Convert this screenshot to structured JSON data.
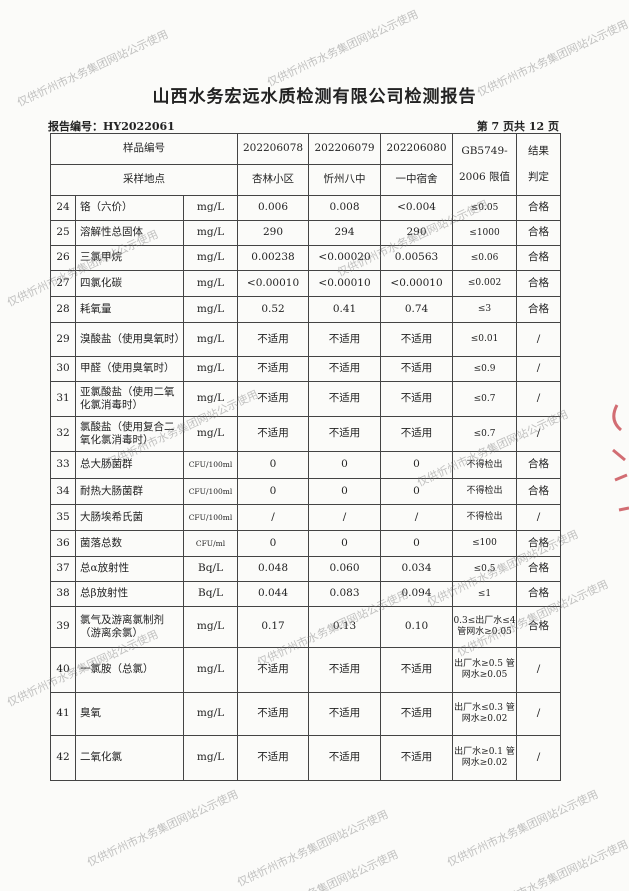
{
  "title": "山西水务宏远水质检测有限公司检测报告",
  "report_no": "报告编号：HY2022061",
  "page": "第 7 页共 12 页",
  "watermark": "仅供忻州市水务集团网站公示使用",
  "header": {
    "sample_no_label": "样品编号",
    "site_label": "采样地点",
    "samples": [
      "202206078",
      "202206079",
      "202206080"
    ],
    "sites": [
      "杏林小区",
      "忻州八中",
      "一中宿舍"
    ],
    "limit_label_1": "GB5749-",
    "limit_label_2": "2006 限值",
    "result_label_1": "结果",
    "result_label_2": "判定"
  },
  "rows": [
    {
      "no": "24",
      "name": "铬（六价）",
      "unit": "mg/L",
      "v": [
        "0.006",
        "0.008",
        "<0.004"
      ],
      "limit": "≤0.05",
      "result": "合格"
    },
    {
      "no": "25",
      "name": "溶解性总固体",
      "unit": "mg/L",
      "v": [
        "290",
        "294",
        "290"
      ],
      "limit": "≤1000",
      "result": "合格"
    },
    {
      "no": "26",
      "name": "三氯甲烷",
      "unit": "mg/L",
      "v": [
        "0.00238",
        "<0.00020",
        "0.00563"
      ],
      "limit": "≤0.06",
      "result": "合格"
    },
    {
      "no": "27",
      "name": "四氯化碳",
      "unit": "mg/L",
      "v": [
        "<0.00010",
        "<0.00010",
        "<0.00010"
      ],
      "limit": "≤0.002",
      "result": "合格"
    },
    {
      "no": "28",
      "name": "耗氧量",
      "unit": "mg/L",
      "v": [
        "0.52",
        "0.41",
        "0.74"
      ],
      "limit": "≤3",
      "result": "合格"
    },
    {
      "no": "29",
      "name": "溴酸盐（使用臭氧时）",
      "unit": "mg/L",
      "v": [
        "不适用",
        "不适用",
        "不适用"
      ],
      "limit": "≤0.01",
      "result": "/"
    },
    {
      "no": "30",
      "name": "甲醛（使用臭氧时）",
      "unit": "mg/L",
      "v": [
        "不适用",
        "不适用",
        "不适用"
      ],
      "limit": "≤0.9",
      "result": "/"
    },
    {
      "no": "31",
      "name": "亚氯酸盐（使用二氧化氯消毒时）",
      "unit": "mg/L",
      "v": [
        "不适用",
        "不适用",
        "不适用"
      ],
      "limit": "≤0.7",
      "result": "/"
    },
    {
      "no": "32",
      "name": "氯酸盐（使用复合二氧化氯消毒时）",
      "unit": "mg/L",
      "v": [
        "不适用",
        "不适用",
        "不适用"
      ],
      "limit": "≤0.7",
      "result": "/"
    },
    {
      "no": "33",
      "name": "总大肠菌群",
      "unit": "CFU/100ml",
      "v": [
        "0",
        "0",
        "0"
      ],
      "limit": "不得检出",
      "result": "合格"
    },
    {
      "no": "34",
      "name": "耐热大肠菌群",
      "unit": "CFU/100ml",
      "v": [
        "0",
        "0",
        "0"
      ],
      "limit": "不得检出",
      "result": "合格"
    },
    {
      "no": "35",
      "name": "大肠埃希氏菌",
      "unit": "CFU/100ml",
      "v": [
        "/",
        "/",
        "/"
      ],
      "limit": "不得检出",
      "result": "/"
    },
    {
      "no": "36",
      "name": "菌落总数",
      "unit": "CFU/ml",
      "v": [
        "0",
        "0",
        "0"
      ],
      "limit": "≤100",
      "result": "合格"
    },
    {
      "no": "37",
      "name": "总α放射性",
      "unit": "Bq/L",
      "v": [
        "0.048",
        "0.060",
        "0.034"
      ],
      "limit": "≤0.5",
      "result": "合格"
    },
    {
      "no": "38",
      "name": "总β放射性",
      "unit": "Bq/L",
      "v": [
        "0.044",
        "0.083",
        "0.094"
      ],
      "limit": "≤1",
      "result": "合格"
    },
    {
      "no": "39",
      "name": "氯气及游离氯制剂（游离余氯）",
      "unit": "mg/L",
      "v": [
        "0.17",
        "0.13",
        "0.10"
      ],
      "limit": "0.3≤出厂水≤4 管网水≥0.05",
      "result": "合格"
    },
    {
      "no": "40",
      "name": "一氯胺（总氯）",
      "unit": "mg/L",
      "v": [
        "不适用",
        "不适用",
        "不适用"
      ],
      "limit": "出厂水≥0.5 管网水≥0.05",
      "result": "/"
    },
    {
      "no": "41",
      "name": "臭氧",
      "unit": "mg/L",
      "v": [
        "不适用",
        "不适用",
        "不适用"
      ],
      "limit": "出厂水≤0.3 管网水≥0.02",
      "result": "/"
    },
    {
      "no": "42",
      "name": "二氧化氯",
      "unit": "mg/L",
      "v": [
        "不适用",
        "不适用",
        "不适用"
      ],
      "limit": "出厂水≥0.1 管网水≥0.02",
      "result": "/"
    }
  ]
}
